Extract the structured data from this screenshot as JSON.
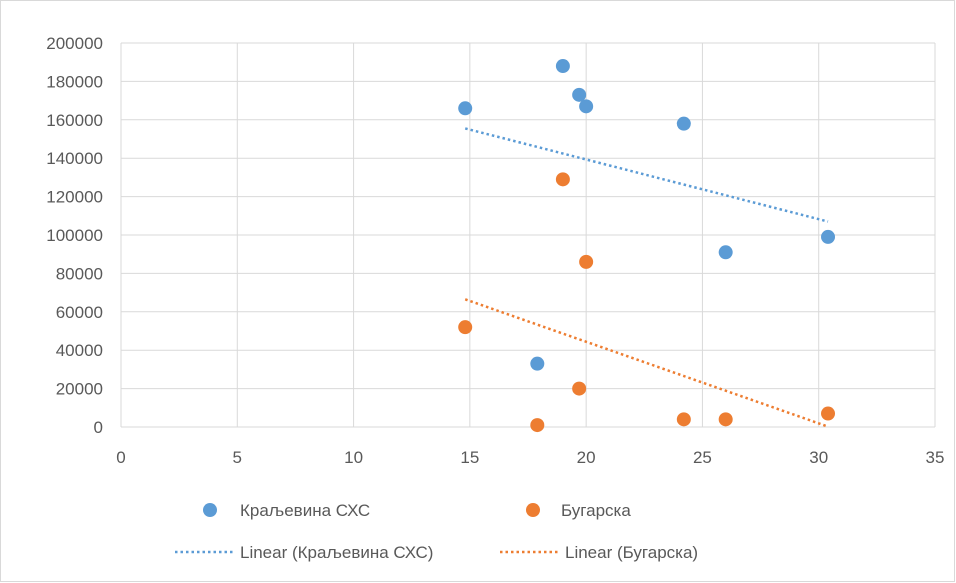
{
  "chart_data": {
    "type": "scatter",
    "title": "",
    "xlabel": "",
    "ylabel": "",
    "xlim": [
      0,
      35
    ],
    "ylim": [
      0,
      200000
    ],
    "x_ticks": [
      0,
      5,
      10,
      15,
      20,
      25,
      30,
      35
    ],
    "y_ticks": [
      0,
      20000,
      40000,
      60000,
      80000,
      100000,
      120000,
      140000,
      160000,
      180000,
      200000
    ],
    "grid": true,
    "legend_position": "bottom",
    "series": [
      {
        "name": "Краљевина СХС",
        "color": "#5b9bd5",
        "points": [
          {
            "x": 14.8,
            "y": 166000
          },
          {
            "x": 17.9,
            "y": 33000
          },
          {
            "x": 19.0,
            "y": 188000
          },
          {
            "x": 19.7,
            "y": 173000
          },
          {
            "x": 20.0,
            "y": 167000
          },
          {
            "x": 24.2,
            "y": 158000
          },
          {
            "x": 26.0,
            "y": 91000
          },
          {
            "x": 30.4,
            "y": 99000
          }
        ]
      },
      {
        "name": "Бугарска",
        "color": "#ed7d31",
        "points": [
          {
            "x": 14.8,
            "y": 52000
          },
          {
            "x": 17.9,
            "y": 1000
          },
          {
            "x": 19.0,
            "y": 129000
          },
          {
            "x": 19.7,
            "y": 20000
          },
          {
            "x": 20.0,
            "y": 86000
          },
          {
            "x": 24.2,
            "y": 4000
          },
          {
            "x": 26.0,
            "y": 4000
          },
          {
            "x": 30.4,
            "y": 7000
          }
        ]
      }
    ],
    "trendlines": [
      {
        "name": "Linear (Краљевина СХС)",
        "color": "#5b9bd5",
        "from": [
          14.8,
          155500
        ],
        "to": [
          30.4,
          107000
        ]
      },
      {
        "name": "Linear (Бугарска)",
        "color": "#ed7d31",
        "from": [
          14.8,
          66500
        ],
        "to": [
          30.4,
          200
        ]
      }
    ]
  }
}
